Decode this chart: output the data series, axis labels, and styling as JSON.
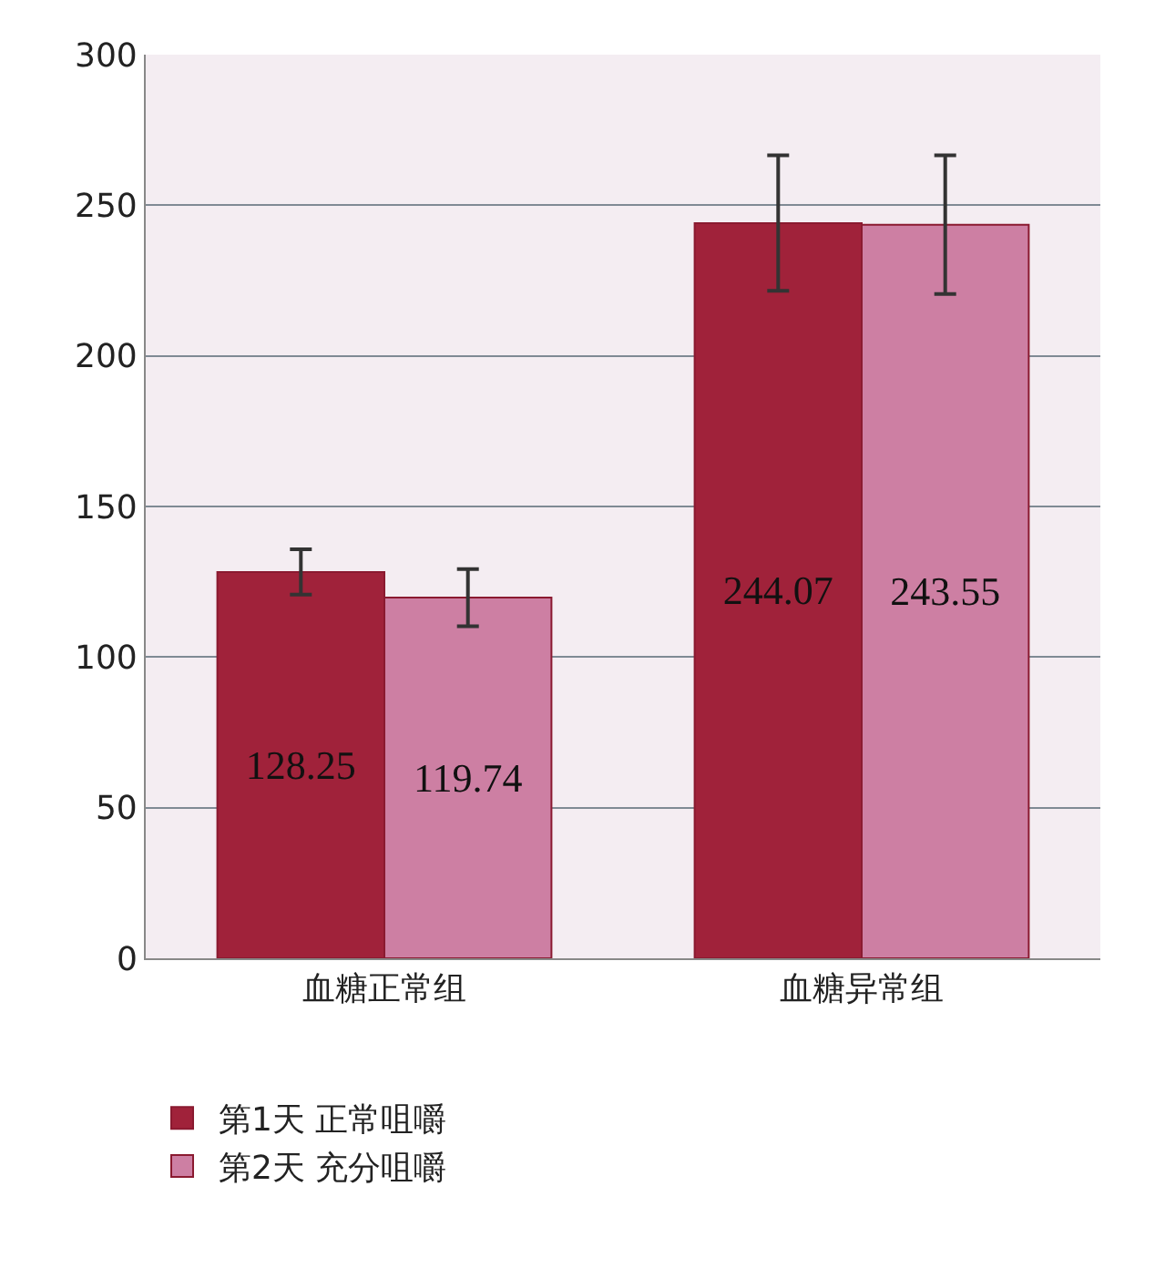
{
  "chart_data": {
    "type": "bar",
    "categories": [
      "血糖正常组",
      "血糖异常组"
    ],
    "series": [
      {
        "name": "第1天 正常咀嚼",
        "color": "#a0223a",
        "values": [
          128.25,
          244.07
        ],
        "errors": [
          7.5,
          22.5
        ]
      },
      {
        "name": "第2天 充分咀嚼",
        "color": "#cd7fa3",
        "values": [
          119.74,
          243.55
        ],
        "errors": [
          9.5,
          23
        ]
      }
    ],
    "ylim": [
      0,
      300
    ],
    "yticks": [
      0,
      50,
      100,
      150,
      200,
      250,
      300
    ],
    "grid": "y",
    "legend": "bottom",
    "data_labels": true
  }
}
